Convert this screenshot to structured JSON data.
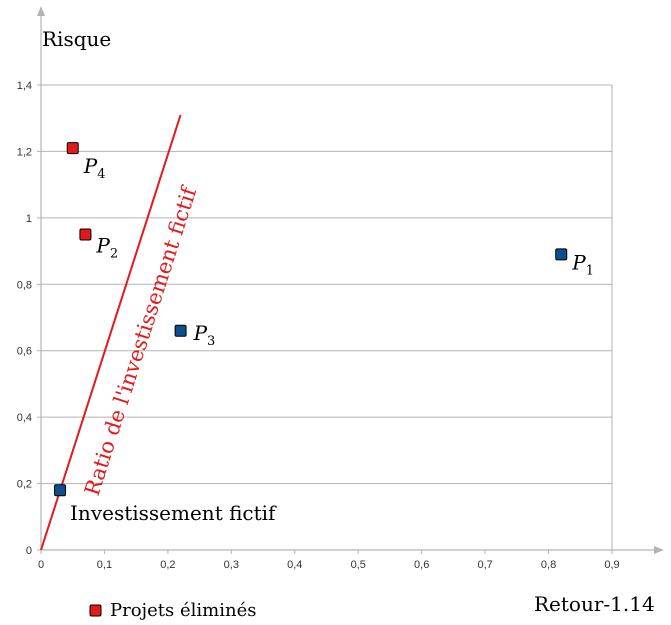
{
  "colors": {
    "grid": "#b3b3b3",
    "axis": "#b3b3b3",
    "eliminated": "#e31a1c",
    "kept": "#0b4f8c",
    "ratio_line": "#e31a1c"
  },
  "chart_data": {
    "type": "scatter",
    "xlabel": "Retour",
    "xlabel_suffix": "-1.14",
    "ylabel": "Risque",
    "xlim": [
      0,
      0.9
    ],
    "ylim": [
      0,
      1.4
    ],
    "x_ticks": [
      {
        "value": 0,
        "label": "0"
      },
      {
        "value": 0.1,
        "label": "0,1"
      },
      {
        "value": 0.2,
        "label": "0,2"
      },
      {
        "value": 0.3,
        "label": "0,3"
      },
      {
        "value": 0.4,
        "label": "0,4"
      },
      {
        "value": 0.5,
        "label": "0,5"
      },
      {
        "value": 0.6,
        "label": "0,6"
      },
      {
        "value": 0.7,
        "label": "0,7"
      },
      {
        "value": 0.8,
        "label": "0,8"
      },
      {
        "value": 0.9,
        "label": "0,9"
      }
    ],
    "y_ticks": [
      {
        "value": 0,
        "label": "0"
      },
      {
        "value": 0.2,
        "label": "0,2"
      },
      {
        "value": 0.4,
        "label": "0,4"
      },
      {
        "value": 0.6,
        "label": "0,6"
      },
      {
        "value": 0.8,
        "label": "0,8"
      },
      {
        "value": 1.0,
        "label": "1"
      },
      {
        "value": 1.2,
        "label": "1,2"
      },
      {
        "value": 1.4,
        "label": "1,4"
      }
    ],
    "grid": "horizontal",
    "points": [
      {
        "label": "P",
        "sub": "1",
        "x": 0.82,
        "y": 0.89,
        "status": "kept"
      },
      {
        "label": "P",
        "sub": "2",
        "x": 0.07,
        "y": 0.95,
        "status": "eliminated"
      },
      {
        "label": "P",
        "sub": "3",
        "x": 0.22,
        "y": 0.66,
        "status": "kept"
      },
      {
        "label": "P",
        "sub": "4",
        "x": 0.05,
        "y": 1.21,
        "status": "eliminated"
      },
      {
        "label": "Investissement fictif",
        "sub": "",
        "x": 0.03,
        "y": 0.18,
        "status": "kept"
      }
    ],
    "ratio_line": {
      "label": "Ratio de l'investissement fictif",
      "from": {
        "x": 0,
        "y": 0
      },
      "to": {
        "x": 0.22,
        "y": 1.31
      }
    },
    "legend": {
      "placement": "bottom-left",
      "items": [
        {
          "label": "Projets éliminés",
          "status": "eliminated"
        }
      ]
    }
  }
}
